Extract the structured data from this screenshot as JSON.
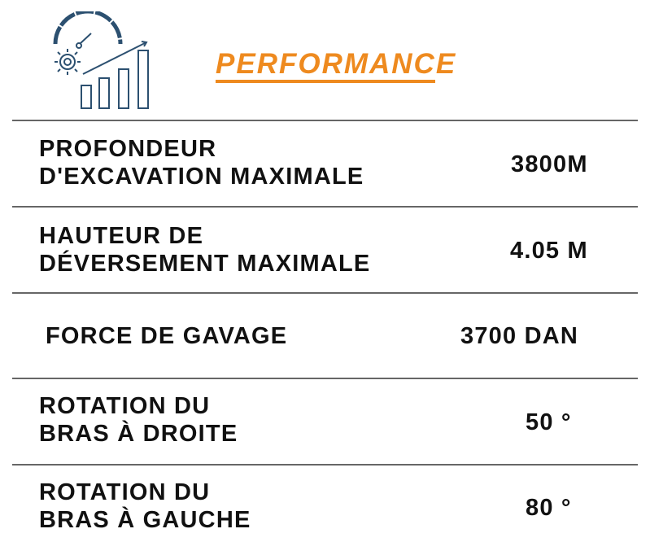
{
  "header": {
    "title": "PERFORMANCE",
    "icon": "performance-gauge-chart-icon",
    "accent_color": "#ee8a1f",
    "icon_color": "#2c5070"
  },
  "rows": [
    {
      "label_line1": "PROFONDEUR",
      "label_line2": "D'EXCAVATION MAXIMALE",
      "value": "3800M"
    },
    {
      "label_line1": "HAUTEUR DE",
      "label_line2": "DÉVERSEMENT MAXIMALE",
      "value": "4.05 M"
    },
    {
      "label_line1": "FORCE DE GAVAGE",
      "label_line2": "",
      "value": "3700 DAN"
    },
    {
      "label_line1": "ROTATION DU",
      "label_line2": "BRAS À DROITE",
      "value": "50 °"
    },
    {
      "label_line1": "ROTATION DU",
      "label_line2": "BRAS À GAUCHE",
      "value": "80 °"
    }
  ]
}
